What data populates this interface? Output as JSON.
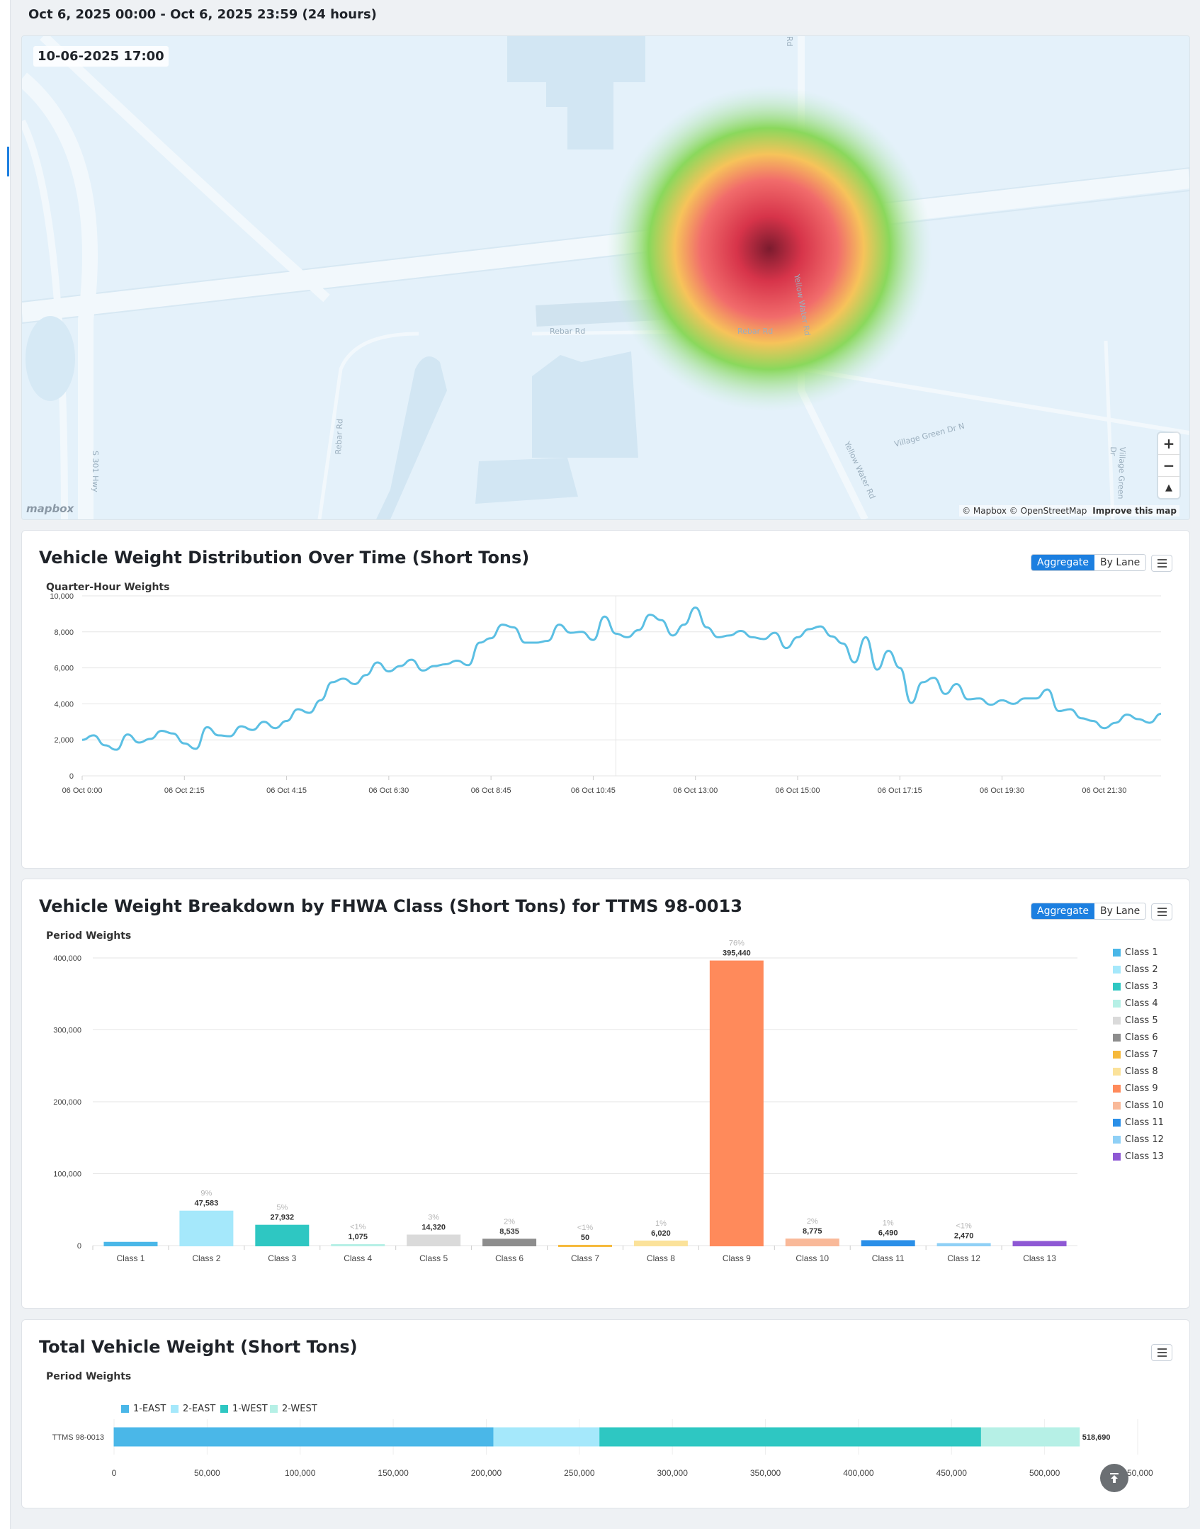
{
  "header": {
    "range_title": "Oct 6, 2025 00:00 - Oct 6, 2025 23:59 (24 hours)"
  },
  "map": {
    "timestamp": "10-06-2025 17:00",
    "roads": [
      "Rd",
      "Rebar Rd",
      "Rebar Rd",
      "Yellow Water Rd",
      "Yellow Water Rd",
      "Village Green Dr N",
      "Village Green Dr",
      "Rebar Rd",
      "S 301 Hwy"
    ],
    "zoom_in_icon": "+",
    "zoom_out_icon": "−",
    "compass_icon": "▲",
    "attribution": "© Mapbox © OpenStreetMap",
    "improve_link": "Improve this map",
    "logo": "mapbox"
  },
  "weight_over_time": {
    "title": "Vehicle Weight Distribution Over Time (Short Tons)",
    "subtitle": "Quarter-Hour Weights",
    "toggle": {
      "aggregate": "Aggregate",
      "by_lane": "By Lane"
    },
    "chart_data": {
      "type": "line",
      "ylim": [
        0,
        10000
      ],
      "y_ticks": [
        "0",
        "2,000",
        "4,000",
        "6,000",
        "8,000",
        "10,000"
      ],
      "x_ticks": [
        "06 Oct 0:00",
        "06 Oct 2:15",
        "06 Oct 4:15",
        "06 Oct 6:30",
        "06 Oct 8:45",
        "06 Oct 10:45",
        "06 Oct 13:00",
        "06 Oct 15:00",
        "06 Oct 17:15",
        "06 Oct 19:30",
        "06 Oct 21:30"
      ],
      "color": "#5bbfe3",
      "values": [
        2000,
        2250,
        1700,
        1450,
        2300,
        1850,
        2050,
        2500,
        2350,
        1800,
        1500,
        2700,
        2250,
        2200,
        2750,
        2550,
        3000,
        2650,
        3050,
        3700,
        3500,
        4200,
        5200,
        5400,
        5100,
        5600,
        6300,
        5800,
        6100,
        6450,
        5850,
        6100,
        6200,
        6400,
        6150,
        7400,
        7650,
        8400,
        8250,
        7400,
        7400,
        7500,
        8400,
        7950,
        8000,
        7550,
        8850,
        7900,
        7700,
        8100,
        8950,
        8650,
        7800,
        8400,
        9350,
        8250,
        7700,
        7800,
        8050,
        7700,
        7600,
        7950,
        7100,
        7700,
        8150,
        8300,
        7750,
        7350,
        6300,
        7700,
        5900,
        6950,
        6000,
        4050,
        5200,
        5450,
        4550,
        5100,
        4250,
        4300,
        3950,
        4200,
        4000,
        4300,
        4300,
        4800,
        3600,
        3700,
        3200,
        3050,
        2650,
        2950,
        3400,
        3150,
        2950,
        3450
      ]
    }
  },
  "fhwa_breakdown": {
    "title": "Vehicle Weight Breakdown by FHWA Class (Short Tons) for TTMS 98-0013",
    "subtitle": "Period Weights",
    "toggle": {
      "aggregate": "Aggregate",
      "by_lane": "By Lane"
    },
    "chart_data": {
      "type": "bar",
      "ylim": [
        0,
        400000
      ],
      "y_ticks": [
        "0",
        "100,000",
        "200,000",
        "300,000",
        "400,000"
      ],
      "categories": [
        "Class 1",
        "Class 2",
        "Class 3",
        "Class 4",
        "Class 5",
        "Class 6",
        "Class 7",
        "Class 8",
        "Class 9",
        "Class 10",
        "Class 11",
        "Class 12",
        "Class 13"
      ],
      "values": [
        4200,
        47583,
        27932,
        1075,
        14320,
        8535,
        50,
        6020,
        395440,
        8775,
        6490,
        2470,
        5400
      ],
      "value_labels": [
        "",
        "47,583",
        "27,932",
        "1,075",
        "14,320",
        "8,535",
        "50",
        "6,020",
        "395,440",
        "8,775",
        "6,490",
        "2,470",
        ""
      ],
      "pct_labels": [
        "",
        "9%",
        "5%",
        "<1%",
        "3%",
        "2%",
        "<1%",
        "1%",
        "76%",
        "2%",
        "1%",
        "<1%",
        ""
      ],
      "colors": [
        "#4ab7e8",
        "#a5e8fb",
        "#2ec7c2",
        "#b6f0e6",
        "#dadada",
        "#8d8d8d",
        "#f6b93b",
        "#fbe29a",
        "#ff8a5b",
        "#f9b999",
        "#2a8fe8",
        "#8fd0f6",
        "#8e58d4"
      ]
    }
  },
  "total_weight": {
    "title": "Total Vehicle Weight (Short Tons)",
    "subtitle": "Period Weights",
    "chart_data": {
      "type": "bar",
      "orientation": "horizontal",
      "stacked": true,
      "categories": [
        "TTMS 98-0013"
      ],
      "series": [
        {
          "name": "1-EAST",
          "values": [
            204000
          ],
          "color": "#4ab7e8"
        },
        {
          "name": "2-EAST",
          "values": [
            57000
          ],
          "color": "#a5e8fb"
        },
        {
          "name": "1-WEST",
          "values": [
            205000
          ],
          "color": "#2ec7c2"
        },
        {
          "name": "2-WEST",
          "values": [
            52690
          ],
          "color": "#b6f0e6"
        }
      ],
      "total_label": "518,690",
      "xlim": [
        0,
        550000
      ],
      "x_ticks": [
        "0",
        "50,000",
        "100,000",
        "150,000",
        "200,000",
        "250,000",
        "300,000",
        "350,000",
        "400,000",
        "450,000",
        "500,000",
        "550,000"
      ]
    }
  }
}
